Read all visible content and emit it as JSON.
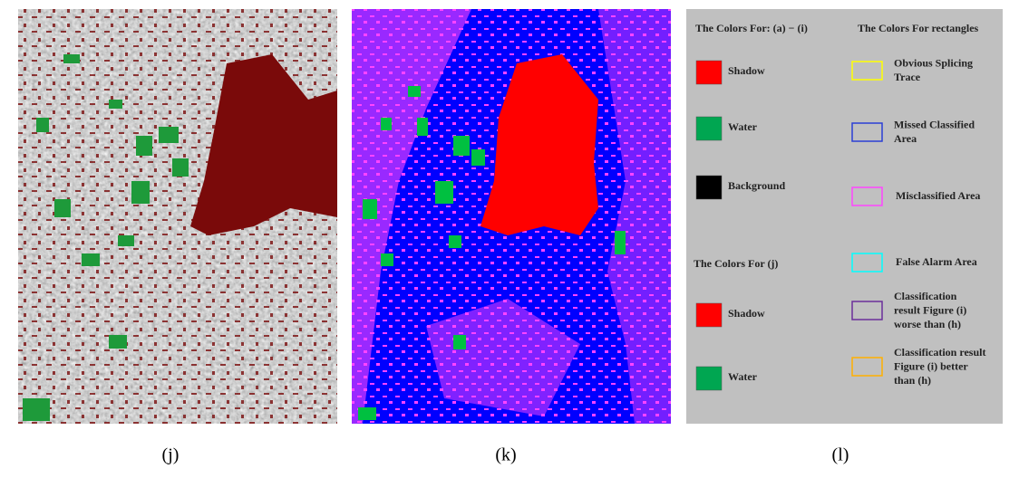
{
  "panels": [
    {
      "caption": "(j)"
    },
    {
      "caption": "(k)"
    },
    {
      "caption": "(l)"
    }
  ],
  "legend": {
    "left_title": "The Colors For: (a) − (i)",
    "left_items": [
      {
        "label": "Shadow",
        "color": "#ff0000"
      },
      {
        "label": "Water",
        "color": "#00a651"
      },
      {
        "label": "Background",
        "color": "#000000"
      }
    ],
    "j_title": "The Colors For (j)",
    "j_items": [
      {
        "label": "Shadow",
        "color": "#ff0000"
      },
      {
        "label": "Water",
        "color": "#00a651"
      }
    ],
    "right_title": "The Colors For rectangles",
    "right_items": [
      {
        "lines": [
          "Obvious Splicing",
          "Trace"
        ],
        "color": "#ffff00"
      },
      {
        "lines": [
          "Missed Classified",
          "Area"
        ],
        "color": "#2b3fd6"
      },
      {
        "lines": [
          "Misclassified Area"
        ],
        "color": "#ff44ff"
      },
      {
        "lines": [
          "False Alarm Area"
        ],
        "color": "#00ffff"
      },
      {
        "lines": [
          "Classification",
          "result  Figure (i)",
          "worse than (h)"
        ],
        "color": "#6a2f9a"
      },
      {
        "lines": [
          "Classification result",
          "Figure (i) better",
          "than (h)"
        ],
        "color": "#ffb000"
      }
    ]
  }
}
